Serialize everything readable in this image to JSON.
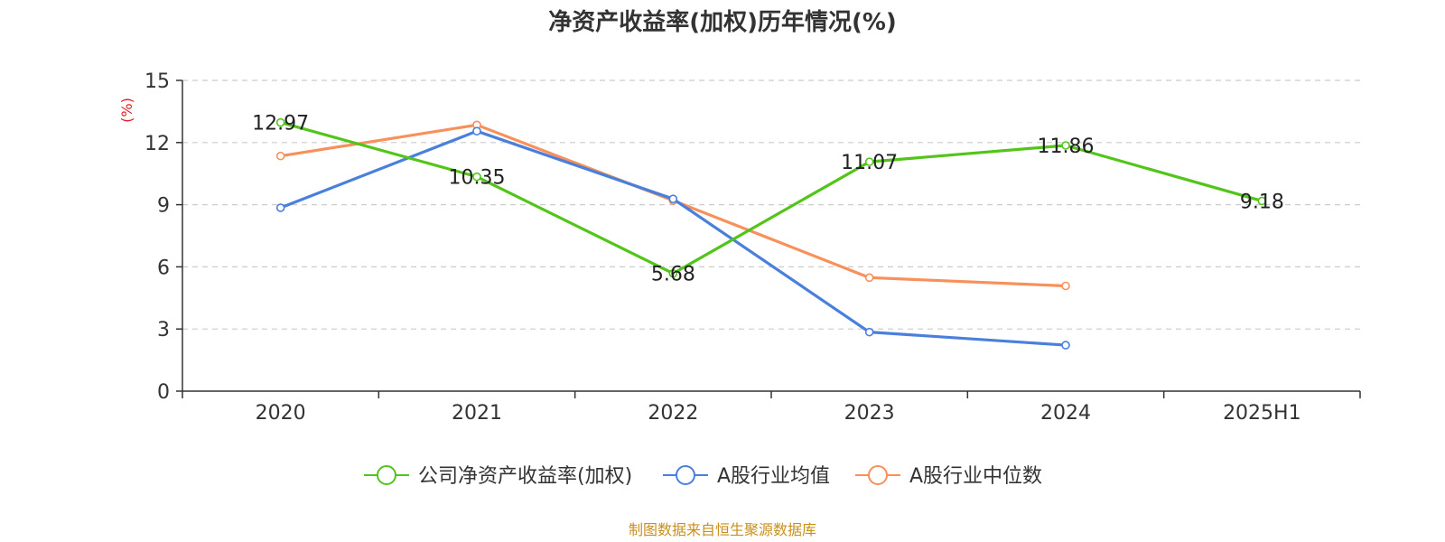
{
  "chart_data": {
    "type": "line",
    "title": "净资产收益率(加权)历年情况(%)",
    "ylabel": "(%)",
    "xlabel": "",
    "categories": [
      "2020",
      "2021",
      "2022",
      "2023",
      "2024",
      "2025H1"
    ],
    "ylim": [
      0,
      15
    ],
    "yticks": [
      0,
      3,
      6,
      9,
      12,
      15
    ],
    "grid": true,
    "legend_position": "bottom",
    "series": [
      {
        "name": "公司净资产收益率(加权)",
        "color": "#52c41a",
        "values": [
          12.97,
          10.35,
          5.68,
          11.07,
          11.86,
          9.18
        ],
        "labels": [
          "12.97",
          "10.35",
          "5.68",
          "11.07",
          "11.86",
          "9.18"
        ]
      },
      {
        "name": "A股行业均值",
        "color": "#4a7fdc",
        "values": [
          8.85,
          12.55,
          9.28,
          2.85,
          2.22,
          null
        ]
      },
      {
        "name": "A股行业中位数",
        "color": "#f7905a",
        "values": [
          11.35,
          12.85,
          9.2,
          5.48,
          5.08,
          null
        ]
      }
    ]
  },
  "footer": {
    "source": "制图数据来自恒生聚源数据库",
    "source_color": "#c8901e",
    "ylabel_color": "#e02020"
  }
}
